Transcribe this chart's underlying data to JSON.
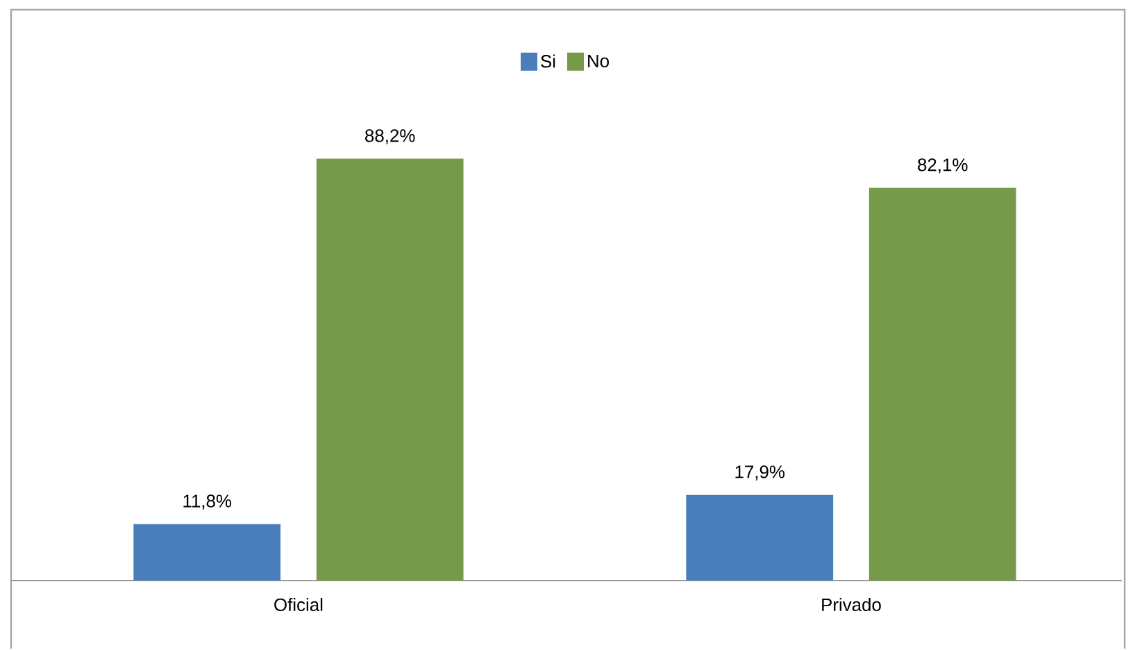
{
  "chart_data": {
    "type": "bar",
    "categories": [
      "Oficial",
      "Privado"
    ],
    "series": [
      {
        "name": "Si",
        "color": "#4a7ebb",
        "values": [
          11.8,
          17.9
        ],
        "value_labels": [
          "11,8%",
          "17,9%"
        ]
      },
      {
        "name": "No",
        "color": "#77994a",
        "values": [
          88.2,
          82.1
        ],
        "value_labels": [
          "88,2%",
          "82,1%"
        ]
      }
    ],
    "legend": "top"
  }
}
